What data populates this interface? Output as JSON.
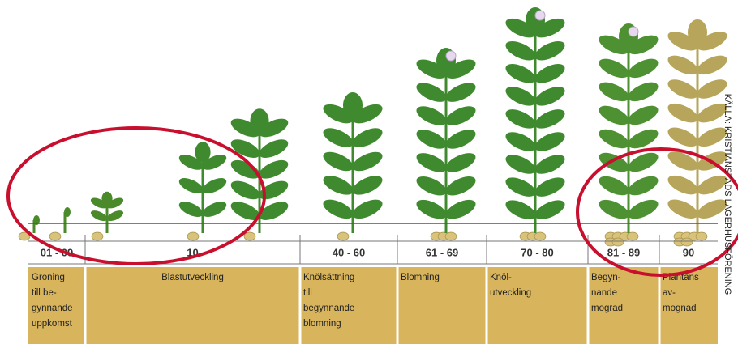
{
  "stages": [
    {
      "code": "01 - 09",
      "name": [
        "Groning",
        "till be-",
        "gynnande",
        "uppkomst"
      ]
    },
    {
      "code": "10",
      "name": [
        "Blastutveckling"
      ]
    },
    {
      "code": "40 - 60",
      "name": [
        "Knölsättning",
        "till",
        "begynnande",
        "blomning"
      ]
    },
    {
      "code": "61 - 69",
      "name": [
        "Blomning"
      ]
    },
    {
      "code": "70 - 80",
      "name": [
        "Knöl-",
        "utveckling"
      ]
    },
    {
      "code": "81 - 89",
      "name": [
        "Begyn-",
        "nande",
        "mograd"
      ]
    },
    {
      "code": "90",
      "name": [
        "Plantans",
        "av-",
        "mognad"
      ]
    }
  ],
  "credit": "KÄLLA: KRISTIANSTADS LAGERHUSFÖRENING"
}
